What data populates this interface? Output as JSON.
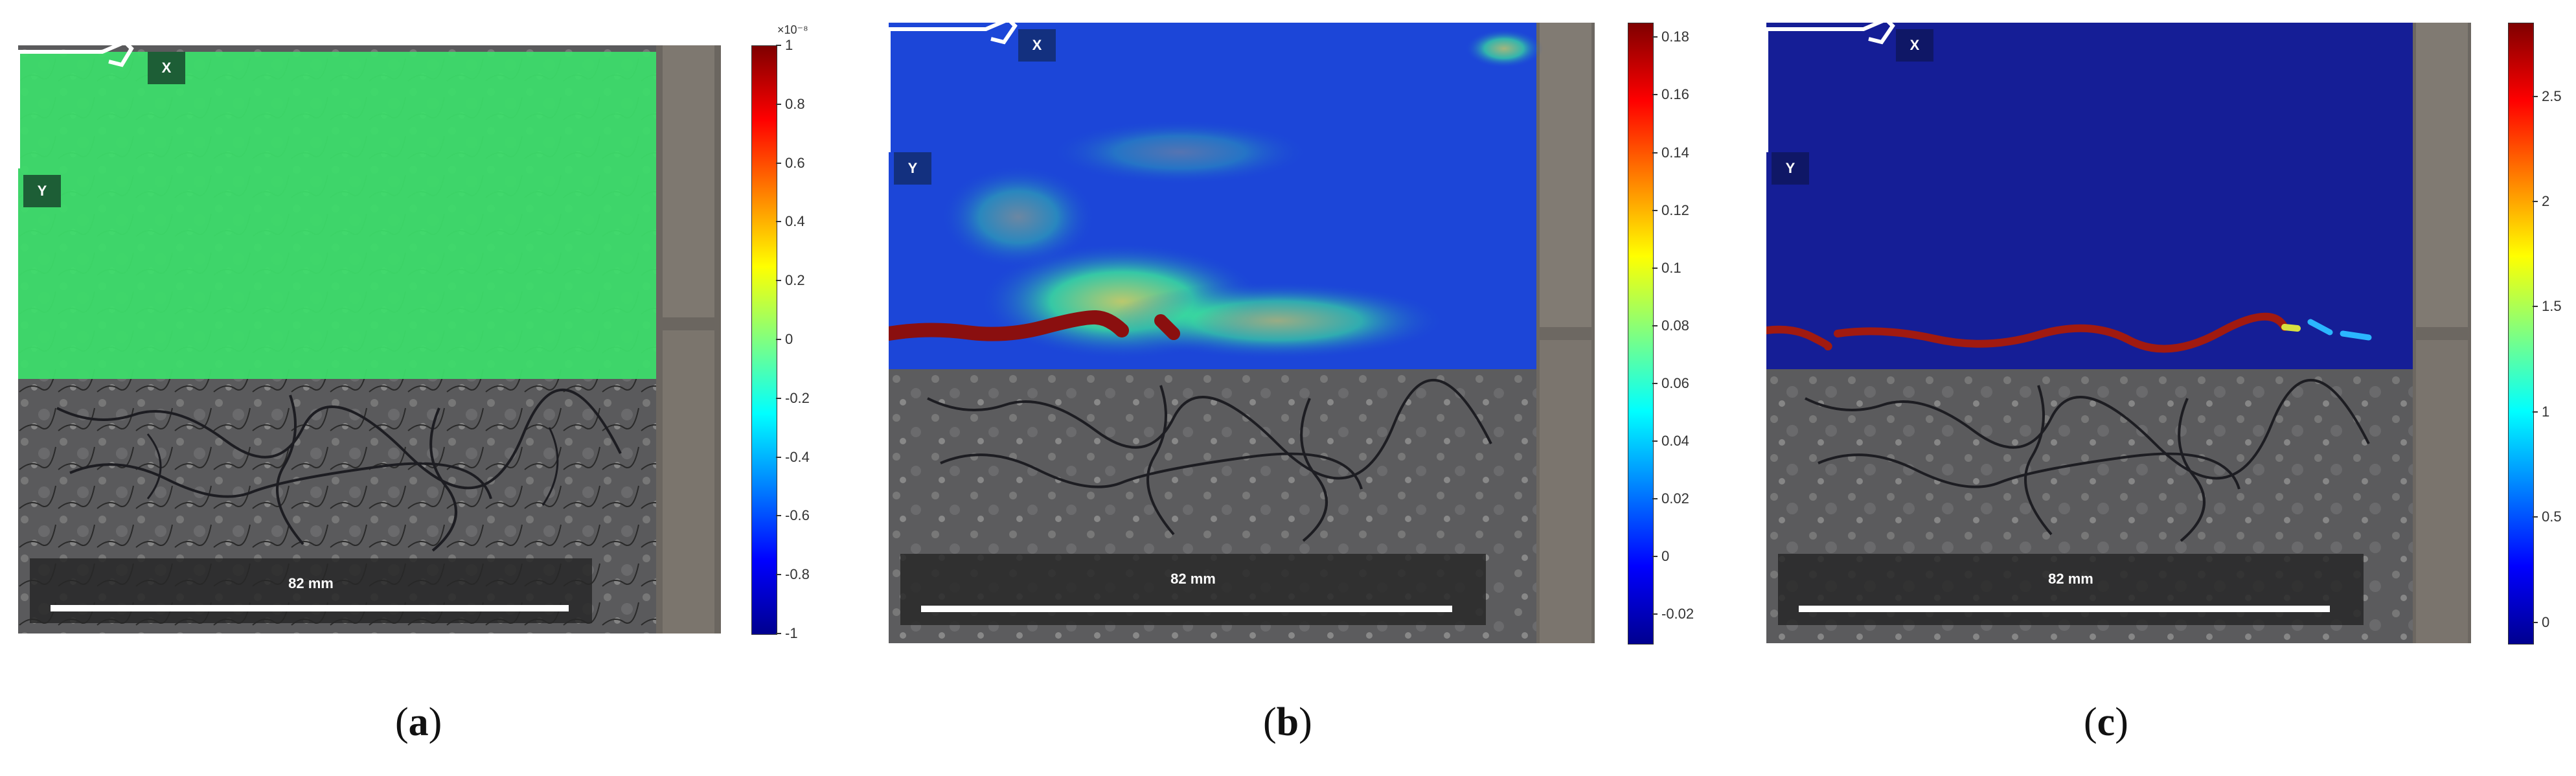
{
  "panels": [
    {
      "caption_letter": "a",
      "axis_x": "X",
      "axis_y": "Y",
      "scale_text": "82 mm",
      "strain_field_color": "#3ddc6a",
      "colorbar": {
        "exponent_label": "×10⁻⁸",
        "ticks": [
          "1",
          "0.8",
          "0.6",
          "0.4",
          "0.2",
          "0",
          "-0.2",
          "-0.4",
          "-0.6",
          "-0.8",
          "-1"
        ],
        "range": [
          -1,
          1
        ]
      }
    },
    {
      "caption_letter": "b",
      "axis_x": "X",
      "axis_y": "Y",
      "scale_text": "82 mm",
      "strain_field_color": "#1c46d8",
      "colorbar": {
        "ticks": [
          "0.18",
          "0.16",
          "0.14",
          "0.12",
          "0.1",
          "0.08",
          "0.06",
          "0.04",
          "0.02",
          "0",
          "-0.02"
        ],
        "range": [
          -0.03,
          0.185
        ]
      }
    },
    {
      "caption_letter": "c",
      "axis_x": "X",
      "axis_y": "Y",
      "scale_text": "82 mm",
      "strain_field_color": "#151e96",
      "colorbar": {
        "ticks": [
          "2.5",
          "2",
          "1.5",
          "1",
          "0.5",
          "0"
        ],
        "range": [
          -0.1,
          2.85
        ]
      }
    }
  ],
  "colormap": "jet"
}
